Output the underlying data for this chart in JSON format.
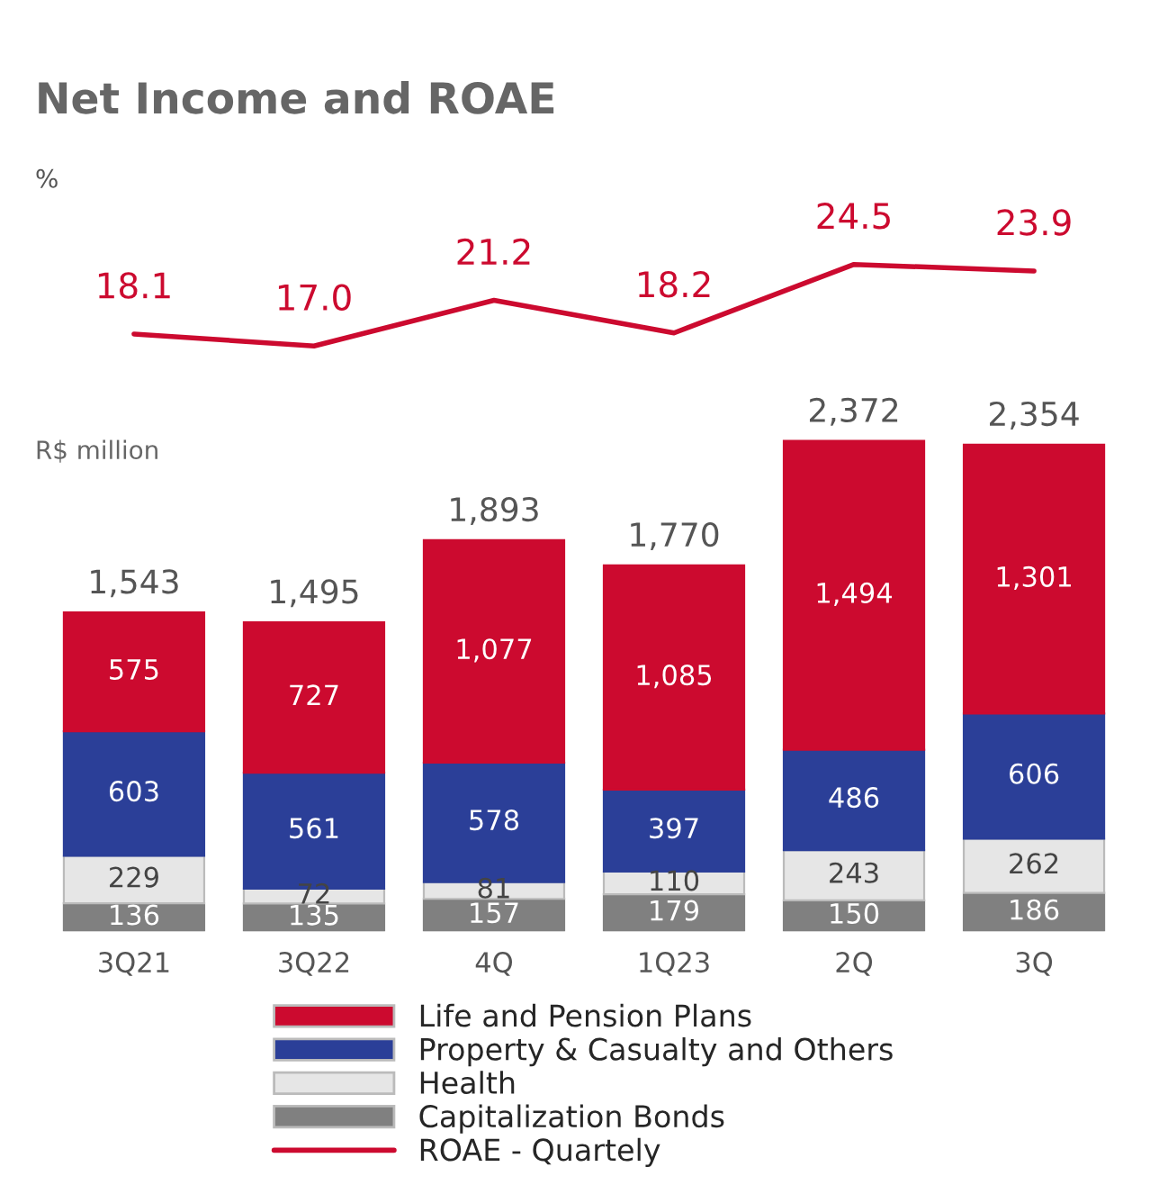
{
  "chart_data": [
    {
      "type": "line",
      "title": "Net Income and ROAE",
      "ylabel": "%",
      "categories": [
        null,
        null,
        null,
        null,
        null,
        null
      ],
      "series": [
        {
          "name": "ROAE - Quartely",
          "color": "#cc0a2f",
          "line_style": "solid",
          "marker": "none",
          "values": [
            18.1,
            17.0,
            21.2,
            18.2,
            24.5,
            23.9
          ],
          "value_labels": [
            "18.1",
            "17.0",
            "21.2",
            "18.2",
            "24.5",
            "23.9"
          ]
        }
      ]
    },
    {
      "type": "bar",
      "stacked": true,
      "legend": "bottom",
      "grid": false,
      "categories": [
        "3Q21",
        "3Q22",
        "4Q",
        "1Q23",
        "2Q",
        "3Q"
      ],
      "series": [
        {
          "name": "Capitalization Bonds",
          "color": "#808080",
          "values": [
            136,
            135,
            157,
            179,
            150,
            186
          ],
          "value_labels": [
            "136",
            "135",
            "157",
            "179",
            "150",
            "186"
          ]
        },
        {
          "name": "Health",
          "color": "#e6e6e6",
          "values": [
            229,
            72,
            81,
            110,
            243,
            262
          ],
          "value_labels": [
            "229",
            "72",
            "81",
            "110",
            "243",
            "262"
          ]
        },
        {
          "name": "Property & Casualty and Others",
          "color": "#2b3f98",
          "values": [
            603,
            561,
            578,
            397,
            486,
            606
          ],
          "value_labels": [
            "603",
            "561",
            "578",
            "397",
            "486",
            "606"
          ]
        },
        {
          "name": "Life and Pension Plans",
          "color": "#cc0a2f",
          "values": [
            575,
            727,
            1077,
            1085,
            1494,
            1301
          ],
          "value_labels": [
            "575",
            "727",
            "1,077",
            "1,085",
            "1,494",
            "1,301"
          ]
        }
      ],
      "totals": [
        "1,543",
        "1,495",
        "1,893",
        "1,770",
        "2,372",
        "2,354"
      ],
      "ylabel": "R$ million"
    }
  ]
}
